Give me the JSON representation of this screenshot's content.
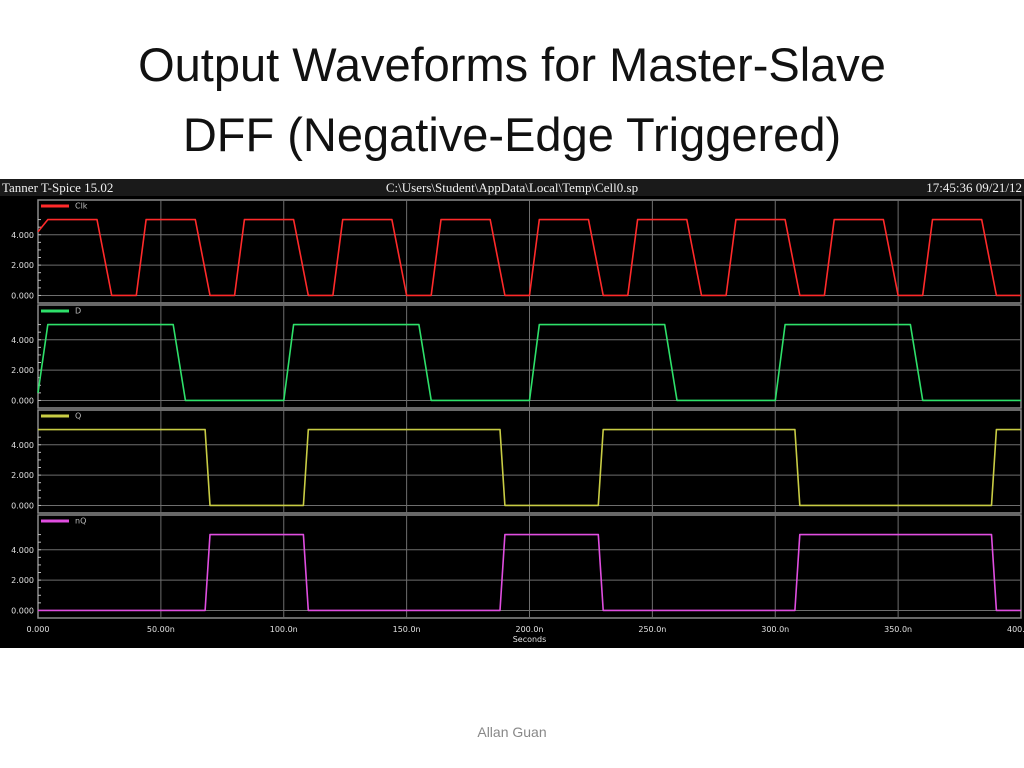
{
  "slide": {
    "title_line1": "Output Waveforms for Master-Slave",
    "title_line2": "DFF (Negative-Edge Triggered)",
    "footer": "Allan Guan"
  },
  "window": {
    "app_title": "Tanner T-Spice 15.02",
    "file_path": "C:\\Users\\Student\\AppData\\Local\\Temp\\Cell0.sp",
    "timestamp": "17:45:36 09/21/12"
  },
  "chart_data": {
    "type": "line",
    "xlabel": "Seconds",
    "xlim": [
      0,
      400
    ],
    "x_unit": "ns",
    "x_ticks": [
      "0.000",
      "50.00n",
      "100.0n",
      "150.0n",
      "200.0n",
      "250.0n",
      "300.0n",
      "350.0n",
      "400.0n"
    ],
    "y_ticks": [
      "0.000",
      "2.000",
      "4.000"
    ],
    "ylim": [
      -0.3,
      5.5
    ],
    "grid": true,
    "background": "#000000",
    "series": [
      {
        "name": "Clk",
        "color": "#ff2a2a",
        "x": [
          0,
          4,
          24,
          30,
          40,
          44,
          64,
          70,
          80,
          84,
          104,
          110,
          120,
          124,
          144,
          150,
          160,
          164,
          184,
          190,
          200,
          204,
          224,
          230,
          240,
          244,
          264,
          270,
          280,
          284,
          304,
          310,
          320,
          324,
          344,
          350,
          360,
          364,
          384,
          390,
          400
        ],
        "values": [
          4.2,
          5,
          5,
          0,
          0,
          5,
          5,
          0,
          0,
          5,
          5,
          0,
          0,
          5,
          5,
          0,
          0,
          5,
          5,
          0,
          0,
          5,
          5,
          0,
          0,
          5,
          5,
          0,
          0,
          5,
          5,
          0,
          0,
          5,
          5,
          0,
          0,
          5,
          5,
          0,
          0
        ]
      },
      {
        "name": "D",
        "color": "#2ee06a",
        "x": [
          0,
          4,
          55,
          60,
          100,
          104,
          155,
          160,
          200,
          204,
          255,
          260,
          300,
          304,
          355,
          360,
          400
        ],
        "values": [
          0.5,
          5,
          5,
          0,
          0,
          5,
          5,
          0,
          0,
          5,
          5,
          0,
          0,
          5,
          5,
          0,
          0
        ]
      },
      {
        "name": "Q",
        "color": "#c8cc44",
        "x": [
          0,
          68,
          70,
          108,
          110,
          188,
          190,
          228,
          230,
          308,
          310,
          388,
          390,
          400
        ],
        "values": [
          5,
          5,
          0,
          0,
          5,
          5,
          0,
          0,
          5,
          5,
          0,
          0,
          5,
          5
        ]
      },
      {
        "name": "nQ",
        "color": "#e04ee0",
        "x": [
          0,
          68,
          70,
          108,
          110,
          188,
          190,
          228,
          230,
          308,
          310,
          388,
          390,
          400
        ],
        "values": [
          0,
          0,
          5,
          5,
          0,
          0,
          5,
          5,
          0,
          0,
          5,
          5,
          0,
          0
        ]
      }
    ]
  }
}
